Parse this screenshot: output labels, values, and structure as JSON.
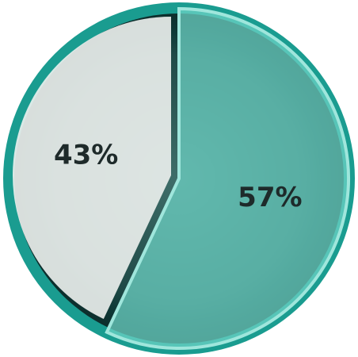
{
  "chart_data": {
    "type": "pie",
    "values": [
      57,
      43
    ],
    "value_labels": [
      "57%",
      "43%"
    ],
    "colors": [
      "#6fd6c8",
      "#eef2f0"
    ]
  }
}
